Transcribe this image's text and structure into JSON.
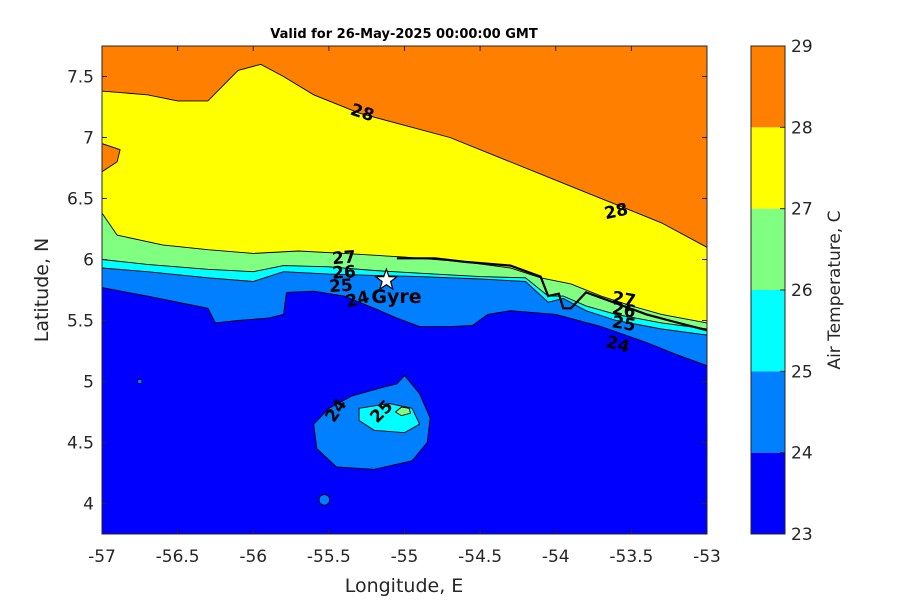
{
  "chart_data": {
    "type": "contour",
    "title": "Valid for 26-May-2025 00:00:00 GMT",
    "xlabel": "Longitude, E",
    "ylabel": "Latitude, N",
    "xlim": [
      -57,
      -53
    ],
    "ylim": [
      3.75,
      7.75
    ],
    "xticks": [
      -57,
      -56.5,
      -56,
      -55.5,
      -55,
      -54.5,
      -54,
      -53.5,
      -53
    ],
    "yticks": [
      4,
      4.5,
      5,
      5.5,
      6,
      6.5,
      7,
      7.5
    ],
    "colorbar": {
      "label": "Air Temperature, C",
      "levels": [
        23,
        24,
        25,
        26,
        27,
        28,
        29
      ],
      "colors": [
        "#0000ff",
        "#0080ff",
        "#00ffff",
        "#80ff80",
        "#ffff00",
        "#ff8000",
        "#ff0000"
      ]
    },
    "contour_lines": [
      {
        "level": 28,
        "points": [
          [
            -57,
            7.38
          ],
          [
            -56.7,
            7.35
          ],
          [
            -56.5,
            7.3
          ],
          [
            -56.3,
            7.3
          ],
          [
            -56.1,
            7.55
          ],
          [
            -55.95,
            7.6
          ],
          [
            -55.8,
            7.5
          ],
          [
            -55.6,
            7.35
          ],
          [
            -55.3,
            7.2
          ],
          [
            -55,
            7.1
          ],
          [
            -54.7,
            7.0
          ],
          [
            -54.4,
            6.85
          ],
          [
            -54.1,
            6.7
          ],
          [
            -53.8,
            6.55
          ],
          [
            -53.5,
            6.4
          ],
          [
            -53.3,
            6.3
          ],
          [
            -53,
            6.1
          ]
        ]
      },
      {
        "level": 28,
        "points": [
          [
            -57,
            6.72
          ],
          [
            -56.9,
            6.8
          ],
          [
            -56.88,
            6.9
          ],
          [
            -57,
            6.95
          ]
        ]
      },
      {
        "level": 27,
        "points": [
          [
            -57,
            6.38
          ],
          [
            -56.9,
            6.2
          ],
          [
            -56.6,
            6.12
          ],
          [
            -56.3,
            6.08
          ],
          [
            -56.0,
            6.05
          ],
          [
            -55.7,
            6.07
          ],
          [
            -55.4,
            6.05
          ],
          [
            -55.0,
            6.02
          ],
          [
            -54.6,
            5.98
          ],
          [
            -54.3,
            5.93
          ],
          [
            -54.1,
            5.85
          ],
          [
            -53.9,
            5.8
          ],
          [
            -53.7,
            5.7
          ],
          [
            -53.5,
            5.62
          ],
          [
            -53.3,
            5.55
          ],
          [
            -53,
            5.48
          ]
        ]
      },
      {
        "level": 26,
        "points": [
          [
            -57,
            6.0
          ],
          [
            -56.7,
            5.96
          ],
          [
            -56.3,
            5.92
          ],
          [
            -56.0,
            5.9
          ],
          [
            -55.8,
            5.95
          ],
          [
            -55.5,
            5.94
          ],
          [
            -55.2,
            5.91
          ],
          [
            -54.8,
            5.88
          ],
          [
            -54.5,
            5.86
          ],
          [
            -54.2,
            5.85
          ],
          [
            -54.05,
            5.7
          ],
          [
            -53.95,
            5.7
          ],
          [
            -53.8,
            5.62
          ],
          [
            -53.6,
            5.55
          ],
          [
            -53.3,
            5.48
          ],
          [
            -53,
            5.43
          ]
        ]
      },
      {
        "level": 25,
        "points": [
          [
            -57,
            5.93
          ],
          [
            -56.7,
            5.9
          ],
          [
            -56.3,
            5.85
          ],
          [
            -56.0,
            5.82
          ],
          [
            -55.8,
            5.9
          ],
          [
            -55.5,
            5.88
          ],
          [
            -55.2,
            5.87
          ],
          [
            -54.9,
            5.86
          ],
          [
            -54.5,
            5.84
          ],
          [
            -54.2,
            5.82
          ],
          [
            -54.05,
            5.65
          ],
          [
            -53.95,
            5.68
          ],
          [
            -53.8,
            5.58
          ],
          [
            -53.6,
            5.5
          ],
          [
            -53.3,
            5.43
          ],
          [
            -53,
            5.38
          ]
        ]
      },
      {
        "level": 24,
        "points": [
          [
            -57,
            5.77
          ],
          [
            -56.7,
            5.7
          ],
          [
            -56.5,
            5.65
          ],
          [
            -56.3,
            5.6
          ],
          [
            -56.25,
            5.48
          ],
          [
            -56.1,
            5.5
          ],
          [
            -55.9,
            5.52
          ],
          [
            -55.8,
            5.55
          ],
          [
            -55.78,
            5.73
          ],
          [
            -55.6,
            5.74
          ],
          [
            -55.4,
            5.7
          ],
          [
            -55.2,
            5.6
          ],
          [
            -55.05,
            5.52
          ],
          [
            -54.9,
            5.45
          ],
          [
            -54.7,
            5.45
          ],
          [
            -54.55,
            5.46
          ],
          [
            -54.45,
            5.55
          ],
          [
            -54.3,
            5.58
          ],
          [
            -54.0,
            5.55
          ],
          [
            -53.7,
            5.45
          ],
          [
            -53.4,
            5.32
          ],
          [
            -53.2,
            5.22
          ],
          [
            -53,
            5.13
          ]
        ]
      },
      {
        "level": 24,
        "closed": true,
        "points": [
          [
            -55.0,
            5.05
          ],
          [
            -54.9,
            4.9
          ],
          [
            -54.83,
            4.7
          ],
          [
            -54.85,
            4.5
          ],
          [
            -54.95,
            4.35
          ],
          [
            -55.2,
            4.28
          ],
          [
            -55.45,
            4.3
          ],
          [
            -55.58,
            4.45
          ],
          [
            -55.6,
            4.65
          ],
          [
            -55.5,
            4.78
          ],
          [
            -55.35,
            4.88
          ],
          [
            -55.15,
            4.95
          ],
          [
            -55.05,
            4.98
          ]
        ]
      },
      {
        "level": 25,
        "closed": true,
        "points": [
          [
            -55.3,
            4.78
          ],
          [
            -55.1,
            4.82
          ],
          [
            -54.95,
            4.78
          ],
          [
            -54.9,
            4.65
          ],
          [
            -55.0,
            4.58
          ],
          [
            -55.2,
            4.6
          ],
          [
            -55.3,
            4.68
          ]
        ]
      },
      {
        "level": 26,
        "closed": true,
        "points": [
          [
            -55.02,
            4.79
          ],
          [
            -54.97,
            4.78
          ],
          [
            -54.96,
            4.74
          ],
          [
            -55.02,
            4.72
          ],
          [
            -55.06,
            4.75
          ]
        ]
      }
    ],
    "small_features": [
      {
        "level": 24,
        "center": [
          -55.53,
          4.03
        ],
        "radius": 0.035
      },
      {
        "level": 24,
        "center": [
          -56.75,
          5.0
        ],
        "radius": 0.015
      }
    ],
    "contour_labels": [
      {
        "text": "28",
        "x": -55.28,
        "y": 7.2,
        "rotation": 18
      },
      {
        "text": "28",
        "x": -53.6,
        "y": 6.39,
        "rotation": -12
      },
      {
        "text": "27",
        "x": -55.4,
        "y": 6.01,
        "rotation": -5
      },
      {
        "text": "26",
        "x": -55.4,
        "y": 5.89,
        "rotation": -4
      },
      {
        "text": "25",
        "x": -55.42,
        "y": 5.78,
        "rotation": -4
      },
      {
        "text": "24",
        "x": -55.31,
        "y": 5.67,
        "rotation": -14
      },
      {
        "text": "27",
        "x": -53.55,
        "y": 5.67,
        "rotation": 10
      },
      {
        "text": "26",
        "x": -53.55,
        "y": 5.58,
        "rotation": 10
      },
      {
        "text": "25",
        "x": -53.55,
        "y": 5.47,
        "rotation": 10
      },
      {
        "text": "24",
        "x": -53.59,
        "y": 5.3,
        "rotation": 15
      },
      {
        "text": "24",
        "x": -55.45,
        "y": 4.76,
        "rotation": -55
      },
      {
        "text": "25",
        "x": -55.15,
        "y": 4.75,
        "rotation": -45
      }
    ],
    "coastline": [
      [
        -55.05,
        6.01
      ],
      [
        -54.8,
        6.01
      ],
      [
        -54.6,
        5.98
      ],
      [
        -54.3,
        5.95
      ],
      [
        -54.1,
        5.86
      ],
      [
        -54.05,
        5.7
      ],
      [
        -53.98,
        5.72
      ],
      [
        -53.95,
        5.6
      ],
      [
        -53.9,
        5.6
      ],
      [
        -53.8,
        5.73
      ],
      [
        -53.6,
        5.64
      ],
      [
        -53.4,
        5.55
      ],
      [
        -53.25,
        5.5
      ],
      [
        -53,
        5.42
      ]
    ],
    "marker": {
      "label": "Gyre",
      "x": -55.12,
      "y": 5.83,
      "symbol": "star"
    }
  }
}
